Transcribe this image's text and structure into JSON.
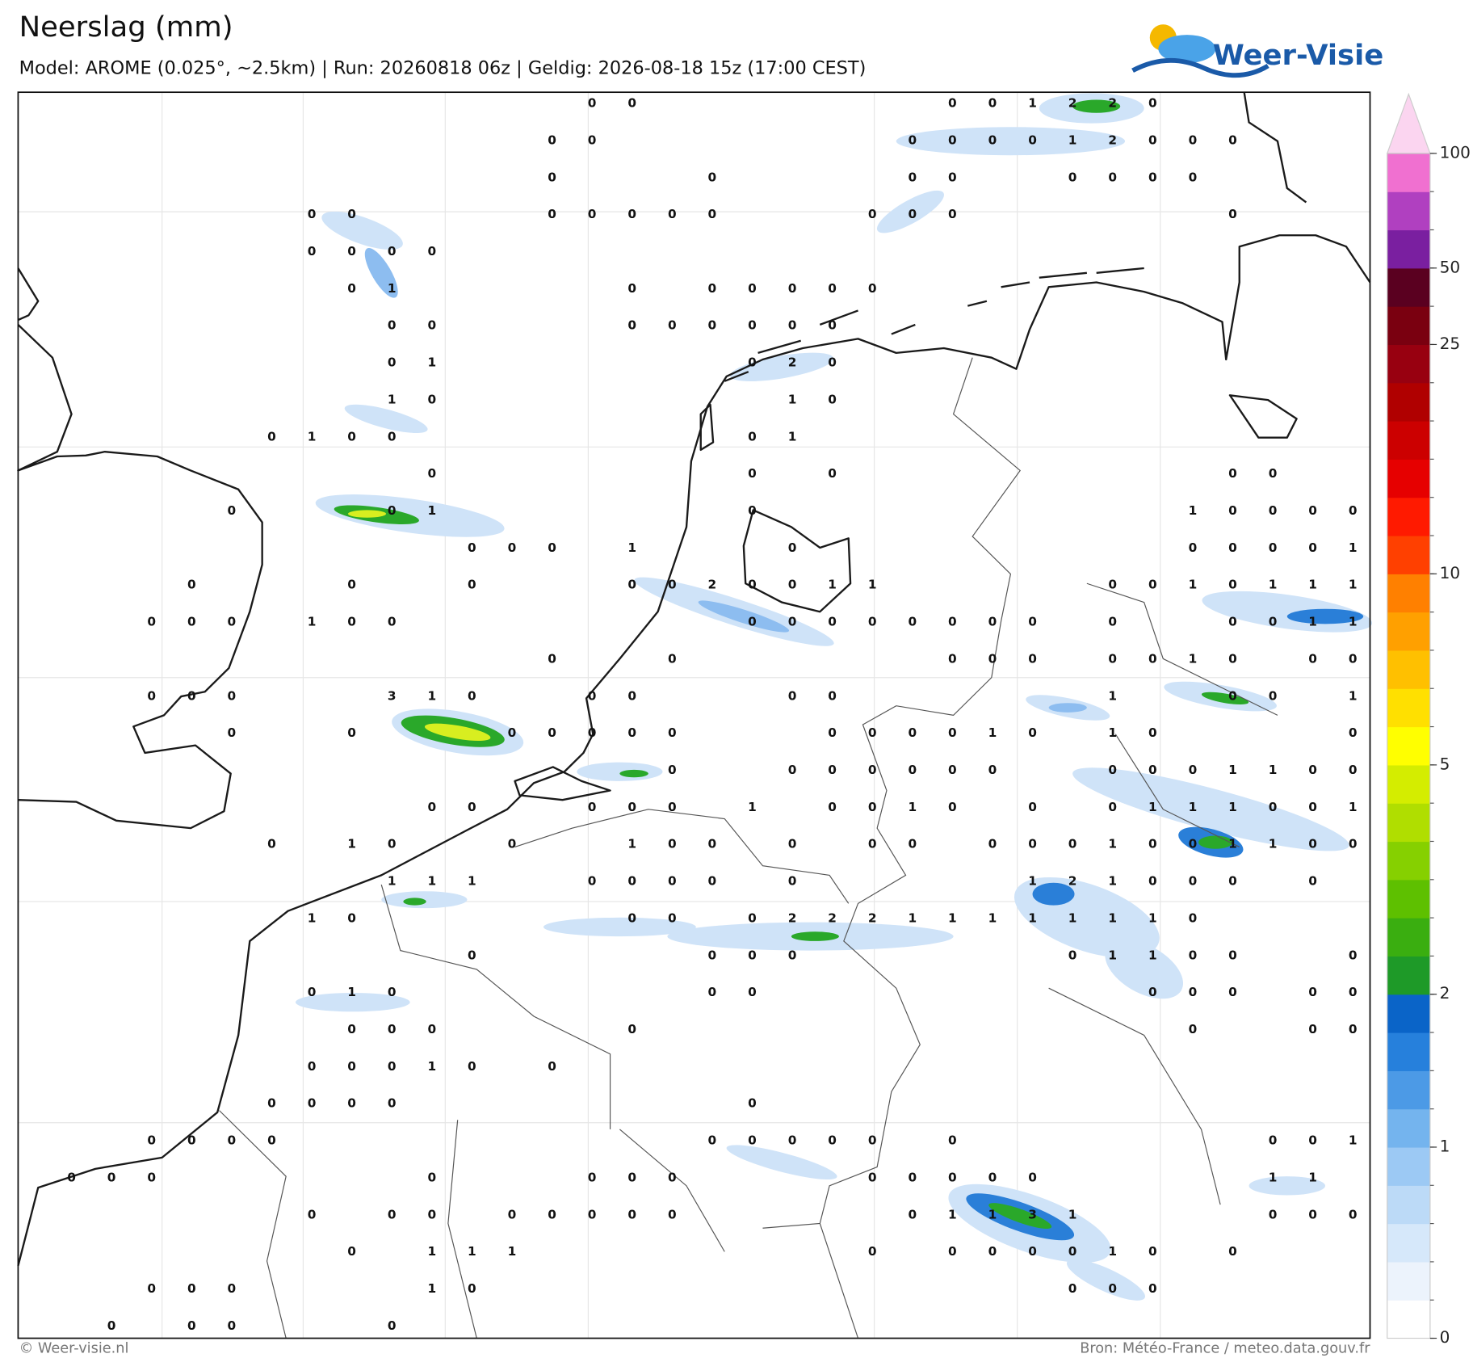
{
  "header": {
    "title": "Neerslag (mm)",
    "subtitle": "Model: AROME (0.025°, ~2.5km)  |  Run: 20260818 06z  |  Geldig: 2026-08-18 15z (17:00 CEST)",
    "logo": "Weer-Visie"
  },
  "map": {
    "stations": [
      [
        null,
        null,
        null,
        null,
        null,
        null,
        null,
        null,
        null,
        null,
        null,
        null,
        null,
        0,
        0,
        null,
        null,
        null,
        null,
        null,
        null,
        null,
        0,
        0,
        1,
        2,
        2,
        0,
        null,
        null,
        null,
        null,
        null
      ],
      [
        null,
        null,
        null,
        null,
        null,
        null,
        null,
        null,
        null,
        null,
        null,
        null,
        0,
        0,
        null,
        null,
        null,
        null,
        null,
        null,
        null,
        0,
        0,
        0,
        0,
        1,
        2,
        0,
        0,
        0,
        null,
        null,
        null
      ],
      [
        null,
        null,
        null,
        null,
        null,
        null,
        null,
        null,
        null,
        null,
        null,
        null,
        0,
        null,
        null,
        null,
        0,
        null,
        null,
        null,
        null,
        0,
        0,
        null,
        null,
        0,
        0,
        0,
        0,
        null,
        null,
        null,
        null
      ],
      [
        null,
        null,
        null,
        null,
        null,
        null,
        0,
        0,
        null,
        null,
        null,
        null,
        0,
        0,
        0,
        0,
        0,
        null,
        null,
        null,
        0,
        0,
        0,
        null,
        null,
        null,
        null,
        null,
        null,
        0,
        null,
        null,
        null
      ],
      [
        null,
        null,
        null,
        null,
        null,
        null,
        0,
        0,
        0,
        0,
        null,
        null,
        null,
        null,
        null,
        null,
        null,
        null,
        null,
        null,
        null,
        null,
        null,
        null,
        null,
        null,
        null,
        null,
        null,
        null,
        null,
        null,
        null
      ],
      [
        null,
        null,
        null,
        null,
        null,
        null,
        null,
        0,
        1,
        null,
        null,
        null,
        null,
        null,
        0,
        null,
        0,
        0,
        0,
        0,
        0,
        null,
        null,
        null,
        null,
        null,
        null,
        null,
        null,
        null,
        null,
        null,
        null
      ],
      [
        null,
        null,
        null,
        null,
        null,
        null,
        null,
        null,
        0,
        0,
        null,
        null,
        null,
        null,
        0,
        0,
        0,
        0,
        0,
        0,
        null,
        null,
        null,
        null,
        null,
        null,
        null,
        null,
        null,
        null,
        null,
        null,
        null
      ],
      [
        null,
        null,
        null,
        null,
        null,
        null,
        null,
        null,
        0,
        1,
        null,
        null,
        null,
        null,
        null,
        null,
        null,
        0,
        2,
        0,
        null,
        null,
        null,
        null,
        null,
        null,
        null,
        null,
        null,
        null,
        null,
        null,
        null
      ],
      [
        null,
        null,
        null,
        null,
        null,
        null,
        null,
        null,
        1,
        0,
        null,
        null,
        null,
        null,
        null,
        null,
        null,
        null,
        1,
        0,
        null,
        null,
        null,
        null,
        null,
        null,
        null,
        null,
        null,
        null,
        null,
        null,
        null
      ],
      [
        null,
        null,
        null,
        null,
        null,
        0,
        1,
        0,
        0,
        null,
        null,
        null,
        null,
        null,
        null,
        null,
        null,
        0,
        1,
        null,
        null,
        null,
        null,
        null,
        null,
        null,
        null,
        null,
        null,
        null,
        null,
        null,
        null
      ],
      [
        null,
        null,
        null,
        null,
        null,
        null,
        null,
        null,
        null,
        0,
        null,
        null,
        null,
        null,
        null,
        null,
        null,
        0,
        null,
        0,
        null,
        null,
        null,
        null,
        null,
        null,
        null,
        null,
        null,
        0,
        0,
        null,
        null
      ],
      [
        null,
        null,
        null,
        null,
        0,
        null,
        null,
        null,
        0,
        1,
        null,
        null,
        null,
        null,
        null,
        null,
        null,
        0,
        null,
        null,
        null,
        null,
        null,
        null,
        null,
        null,
        null,
        null,
        1,
        0,
        0,
        0,
        0
      ],
      [
        null,
        null,
        null,
        null,
        null,
        null,
        null,
        null,
        null,
        null,
        0,
        0,
        0,
        null,
        1,
        null,
        null,
        null,
        0,
        null,
        null,
        null,
        null,
        null,
        null,
        null,
        null,
        null,
        0,
        0,
        0,
        0,
        1
      ],
      [
        null,
        null,
        null,
        0,
        null,
        null,
        null,
        0,
        null,
        null,
        0,
        null,
        null,
        null,
        0,
        0,
        2,
        0,
        0,
        1,
        1,
        null,
        null,
        null,
        null,
        null,
        0,
        0,
        1,
        0,
        1,
        1,
        1
      ],
      [
        null,
        null,
        0,
        0,
        0,
        null,
        1,
        0,
        0,
        null,
        null,
        null,
        null,
        null,
        null,
        null,
        null,
        0,
        0,
        0,
        0,
        0,
        0,
        0,
        0,
        null,
        0,
        null,
        null,
        0,
        0,
        1,
        1
      ],
      [
        null,
        null,
        null,
        null,
        null,
        null,
        null,
        null,
        null,
        null,
        null,
        null,
        0,
        null,
        null,
        0,
        null,
        null,
        null,
        null,
        null,
        null,
        0,
        0,
        0,
        null,
        0,
        0,
        1,
        0,
        null,
        0,
        0
      ],
      [
        null,
        null,
        0,
        0,
        0,
        null,
        null,
        null,
        3,
        1,
        0,
        null,
        null,
        0,
        0,
        null,
        null,
        null,
        0,
        0,
        null,
        null,
        null,
        null,
        null,
        null,
        1,
        null,
        null,
        0,
        0,
        null,
        1
      ],
      [
        null,
        null,
        null,
        null,
        0,
        null,
        null,
        0,
        null,
        null,
        null,
        0,
        0,
        0,
        0,
        0,
        null,
        null,
        null,
        0,
        0,
        0,
        0,
        1,
        0,
        null,
        1,
        0,
        null,
        null,
        null,
        null,
        0
      ],
      [
        null,
        null,
        null,
        null,
        null,
        null,
        null,
        null,
        null,
        null,
        null,
        null,
        null,
        null,
        null,
        0,
        null,
        null,
        0,
        0,
        0,
        0,
        0,
        0,
        null,
        null,
        0,
        0,
        0,
        1,
        1,
        0,
        0
      ],
      [
        null,
        null,
        null,
        null,
        null,
        null,
        null,
        null,
        null,
        0,
        0,
        null,
        null,
        0,
        0,
        0,
        null,
        1,
        null,
        0,
        0,
        1,
        0,
        null,
        0,
        null,
        0,
        1,
        1,
        1,
        0,
        0,
        1
      ],
      [
        null,
        null,
        null,
        null,
        null,
        0,
        null,
        1,
        0,
        null,
        null,
        0,
        null,
        null,
        1,
        0,
        0,
        null,
        0,
        null,
        0,
        0,
        null,
        0,
        0,
        0,
        1,
        0,
        0,
        1,
        1,
        0,
        0
      ],
      [
        null,
        null,
        null,
        null,
        null,
        null,
        null,
        null,
        1,
        1,
        1,
        null,
        null,
        0,
        0,
        0,
        0,
        null,
        0,
        null,
        null,
        null,
        null,
        null,
        1,
        2,
        1,
        0,
        0,
        0,
        null,
        0,
        null
      ],
      [
        null,
        null,
        null,
        null,
        null,
        null,
        1,
        0,
        null,
        null,
        null,
        null,
        null,
        null,
        0,
        0,
        null,
        0,
        2,
        2,
        2,
        1,
        1,
        1,
        1,
        1,
        1,
        1,
        0,
        null,
        null,
        null,
        null
      ],
      [
        null,
        null,
        null,
        null,
        null,
        null,
        null,
        null,
        null,
        null,
        0,
        null,
        null,
        null,
        null,
        null,
        0,
        0,
        0,
        null,
        null,
        null,
        null,
        null,
        null,
        0,
        1,
        1,
        0,
        0,
        null,
        null,
        0
      ],
      [
        null,
        null,
        null,
        null,
        null,
        null,
        0,
        1,
        0,
        null,
        null,
        null,
        null,
        null,
        null,
        null,
        0,
        0,
        null,
        null,
        null,
        null,
        null,
        null,
        null,
        null,
        null,
        0,
        0,
        0,
        null,
        0,
        0
      ],
      [
        null,
        null,
        null,
        null,
        null,
        null,
        null,
        0,
        0,
        0,
        null,
        null,
        null,
        null,
        0,
        null,
        null,
        null,
        null,
        null,
        null,
        null,
        null,
        null,
        null,
        null,
        null,
        null,
        0,
        null,
        null,
        0,
        0
      ],
      [
        null,
        null,
        null,
        null,
        null,
        null,
        0,
        0,
        0,
        1,
        0,
        null,
        0,
        null,
        null,
        null,
        null,
        null,
        null,
        null,
        null,
        null,
        null,
        null,
        null,
        null,
        null,
        null,
        null,
        null,
        null,
        null,
        null
      ],
      [
        null,
        null,
        null,
        null,
        null,
        0,
        0,
        0,
        0,
        null,
        null,
        null,
        null,
        null,
        null,
        null,
        null,
        0,
        null,
        null,
        null,
        null,
        null,
        null,
        null,
        null,
        null,
        null,
        null,
        null,
        null,
        null,
        null
      ],
      [
        null,
        null,
        0,
        0,
        0,
        0,
        null,
        null,
        null,
        null,
        null,
        null,
        null,
        null,
        null,
        null,
        0,
        0,
        0,
        0,
        0,
        null,
        0,
        null,
        null,
        null,
        null,
        null,
        null,
        null,
        0,
        0,
        1
      ],
      [
        0,
        0,
        0,
        null,
        null,
        null,
        null,
        null,
        null,
        0,
        null,
        null,
        null,
        0,
        0,
        0,
        null,
        null,
        null,
        null,
        0,
        0,
        0,
        0,
        0,
        null,
        null,
        null,
        null,
        null,
        1,
        1,
        null
      ],
      [
        null,
        null,
        null,
        null,
        null,
        null,
        0,
        null,
        0,
        0,
        null,
        0,
        0,
        0,
        0,
        0,
        null,
        null,
        null,
        null,
        null,
        0,
        1,
        1,
        3,
        1,
        null,
        null,
        null,
        null,
        0,
        0,
        0
      ],
      [
        null,
        null,
        null,
        null,
        null,
        null,
        null,
        0,
        null,
        1,
        1,
        1,
        null,
        null,
        null,
        null,
        null,
        null,
        null,
        null,
        0,
        null,
        0,
        0,
        0,
        0,
        1,
        0,
        null,
        0,
        null,
        null,
        null
      ],
      [
        null,
        null,
        0,
        0,
        0,
        null,
        null,
        null,
        null,
        1,
        0,
        null,
        null,
        null,
        null,
        null,
        null,
        null,
        null,
        null,
        null,
        null,
        null,
        null,
        null,
        0,
        0,
        0,
        null,
        null,
        null,
        null,
        null
      ],
      [
        null,
        0,
        null,
        0,
        0,
        null,
        null,
        null,
        0,
        null,
        null,
        null,
        null,
        null,
        null,
        null,
        null,
        null,
        null,
        null,
        null,
        null,
        null,
        null,
        null,
        null,
        null,
        null,
        null,
        null,
        null,
        null,
        null
      ]
    ]
  },
  "colorbar": {
    "levels": [
      0,
      0.2,
      0.4,
      0.6,
      0.8,
      1,
      1.25,
      1.5,
      1.75,
      2,
      2.5,
      3,
      3.5,
      4,
      4.5,
      5,
      6,
      7,
      8,
      9,
      10,
      12.5,
      15,
      17.5,
      20,
      22.5,
      25,
      35,
      50,
      65,
      80,
      100
    ],
    "colors": [
      "#ffffff",
      "#ecf3fc",
      "#d6e8fa",
      "#bcdaf7",
      "#9cc9f4",
      "#74b4ee",
      "#4c9ae6",
      "#2680dc",
      "#0a64c8",
      "#1e9a28",
      "#3aae10",
      "#5ec000",
      "#86d000",
      "#b0de00",
      "#d4ed00",
      "#ffff00",
      "#ffe000",
      "#ffc000",
      "#ffa000",
      "#ff8000",
      "#ff4000",
      "#ff1a00",
      "#e60000",
      "#cc0000",
      "#b00000",
      "#980010",
      "#7a0010",
      "#5a0020",
      "#7a1fa0",
      "#b040c0",
      "#f070d0"
    ],
    "extend_color": "#fbd5f0",
    "ticks": [
      0,
      1,
      2,
      5,
      10,
      25,
      50,
      100
    ]
  },
  "footer": {
    "copyright": "© Weer-visie.nl",
    "source": "Bron: Météo-France / meteo.data.gouv.fr"
  }
}
